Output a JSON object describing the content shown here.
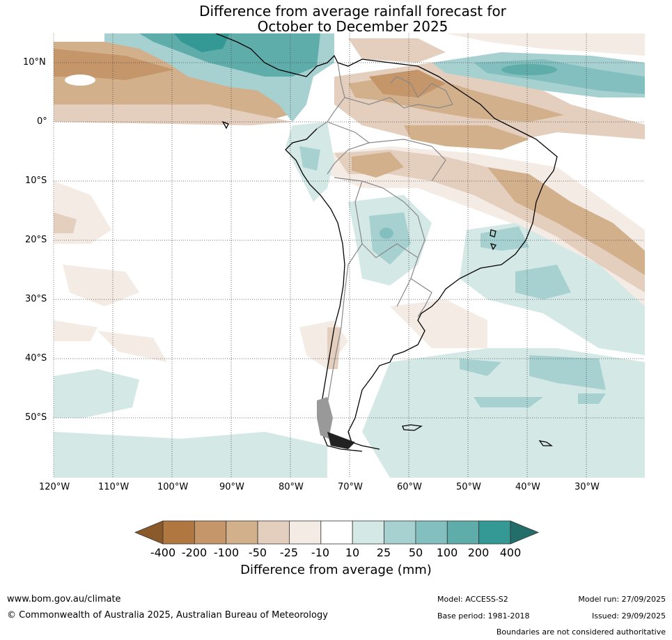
{
  "title": {
    "line1": "Difference from average rainfall forecast for",
    "line2": "October to December 2025"
  },
  "axes": {
    "lat_labels": [
      "10°N",
      "0°",
      "10°S",
      "20°S",
      "30°S",
      "40°S",
      "50°S"
    ],
    "lon_labels": [
      "120°W",
      "110°W",
      "100°W",
      "90°W",
      "80°W",
      "70°W",
      "60°W",
      "50°W",
      "40°W",
      "30°W"
    ]
  },
  "colorbar": {
    "title": "Difference from average (mm)",
    "ticks": [
      "-400",
      "-200",
      "-100",
      "-50",
      "-25",
      "-10",
      "10",
      "25",
      "50",
      "100",
      "200",
      "400"
    ],
    "colors": [
      "#8b5a2b",
      "#b07840",
      "#c49669",
      "#d2b08c",
      "#e4cfbe",
      "#f3ebe4",
      "#ffffff",
      "#d4e8e6",
      "#a6d1d0",
      "#82bfbe",
      "#5fadab",
      "#349995",
      "#236e6a"
    ]
  },
  "footer": {
    "url": "www.bom.gov.au/climate",
    "copyright": "© Commonwealth of Australia 2025, Australian Bureau of Meteorology",
    "model": "Model: ACCESS-S2",
    "model_run": "Model run: 27/09/2025",
    "base_period": "Base period: 1981-2018",
    "issued": "Issued: 29/09/2025",
    "disclaimer": "Boundaries are not considered authoritative"
  }
}
